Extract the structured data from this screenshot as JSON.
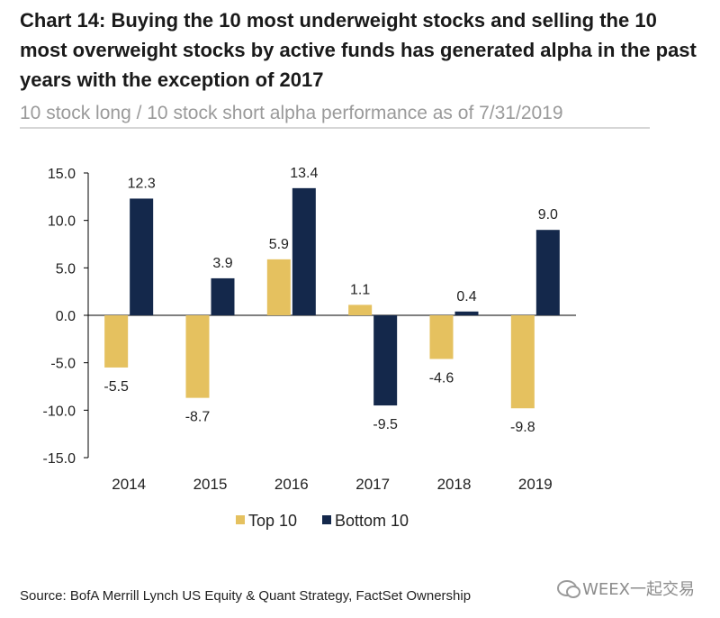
{
  "title": "Chart 14: Buying the 10 most underweight stocks and selling the 10 most overweight stocks by active funds has generated alpha in the past years with the exception of 2017",
  "subtitle": "10 stock long / 10 stock short alpha performance as of 7/31/2019",
  "source": "Source: BofA Merrill Lynch US Equity & Quant Strategy, FactSet Ownership",
  "watermark": "WEEX一起交易",
  "colors": {
    "top10": "#E5C15F",
    "bottom10": "#14284B",
    "axis": "#000000",
    "text": "#222222"
  },
  "chart_data": {
    "type": "bar",
    "categories": [
      "2014",
      "2015",
      "2016",
      "2017",
      "2018",
      "2019"
    ],
    "series": [
      {
        "name": "Top 10",
        "values": [
          -5.5,
          -8.7,
          5.9,
          1.1,
          -4.6,
          -9.8
        ]
      },
      {
        "name": "Bottom 10",
        "values": [
          12.3,
          3.9,
          13.4,
          -9.5,
          0.4,
          9.0
        ]
      }
    ],
    "data_labels": [
      [
        "-5.5",
        "-8.7",
        "5.9",
        "1.1",
        "-4.6",
        "-9.8"
      ],
      [
        "12.3",
        "3.9",
        "13.4",
        "-9.5",
        "0.4",
        "9.0"
      ]
    ],
    "yticks": [
      15.0,
      10.0,
      5.0,
      0.0,
      -5.0,
      -10.0,
      -15.0
    ],
    "ytick_labels": [
      "15.0",
      "10.0",
      "5.0",
      "0.0",
      "-5.0",
      "-10.0",
      "-15.0"
    ],
    "ylim": [
      -15,
      15
    ],
    "grid": false,
    "legend_position": "bottom"
  }
}
